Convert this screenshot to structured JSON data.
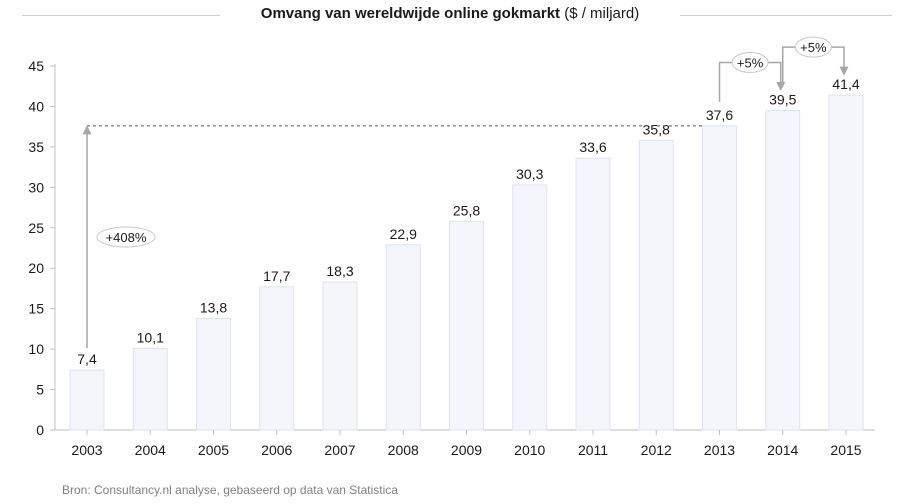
{
  "chart_data": {
    "type": "bar",
    "title": "Omvang van wereldwijde online gokmarkt",
    "title_unit": "($ / miljard)",
    "categories": [
      "2003",
      "2004",
      "2005",
      "2006",
      "2007",
      "2008",
      "2009",
      "2010",
      "2011",
      "2012",
      "2013",
      "2014",
      "2015"
    ],
    "values": [
      7.4,
      10.1,
      13.8,
      17.7,
      18.3,
      22.9,
      25.8,
      30.3,
      33.6,
      35.8,
      37.6,
      39.5,
      41.4
    ],
    "value_labels": [
      "7,4",
      "10,1",
      "13,8",
      "17,7",
      "18,3",
      "22,9",
      "25,8",
      "30,3",
      "33,6",
      "35,8",
      "37,6",
      "39,5",
      "41,4"
    ],
    "y_ticks": [
      0,
      5,
      10,
      15,
      20,
      25,
      30,
      35,
      40,
      45
    ],
    "ylim": [
      0,
      45
    ],
    "xlabel": "",
    "ylabel": "",
    "annotations": [
      {
        "text": "+408%",
        "from_category": "2003",
        "to_category": "2013"
      },
      {
        "text": "+5%",
        "from_category": "2013",
        "to_category": "2014"
      },
      {
        "text": "+5%",
        "from_category": "2014",
        "to_category": "2015"
      }
    ],
    "colors": {
      "bar_fill": "#f5f6fc",
      "bar_stroke": "#dfe2f0",
      "axis": "#bfbfbf",
      "arrow": "#a6a6a6",
      "dash": "#555555"
    }
  },
  "source": "Bron: Consultancy.nl analyse, gebaseerd op data van Statistica"
}
